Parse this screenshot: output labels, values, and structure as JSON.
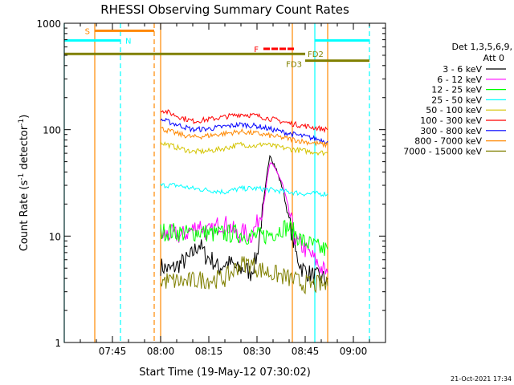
{
  "chart_data": {
    "type": "line",
    "title": "RHESSI Observing Summary Count Rates",
    "xlabel": "Start Time (19-May-12 07:30:02)",
    "ylabel_main": "Count Rate (s",
    "ylabel_sup1": "-1",
    "ylabel_mid": " detector",
    "ylabel_sup2": "-1",
    "ylabel_end": ")",
    "footer": "21-Oct-2021 17:34",
    "x_unit": "minutes after 07:30",
    "xlim": [
      0,
      100
    ],
    "y_scale": "log",
    "ylim": [
      1,
      1000
    ],
    "x_ticks": [
      {
        "label": "07:45",
        "value": 15
      },
      {
        "label": "08:00",
        "value": 30
      },
      {
        "label": "08:15",
        "value": 45
      },
      {
        "label": "08:30",
        "value": 60
      },
      {
        "label": "08:45",
        "value": 75
      },
      {
        "label": "09:00",
        "value": 90
      }
    ],
    "y_ticks": [
      {
        "label": "1",
        "value": 1
      },
      {
        "label": "10",
        "value": 10
      },
      {
        "label": "100",
        "value": 100
      },
      {
        "label": "1000",
        "value": 1000
      }
    ],
    "legend_header": [
      "Det 1,3,5,6,9,",
      "Att 0"
    ],
    "series": [
      {
        "name": "3 - 6 keV",
        "color": "#000000",
        "x": [
          30,
          33,
          36,
          39,
          42,
          44,
          46,
          48,
          50,
          52,
          54,
          56,
          58,
          60,
          62,
          64,
          66,
          68,
          70,
          72,
          74,
          76,
          78,
          80,
          82
        ],
        "y": [
          5.2,
          4.8,
          5.5,
          6.2,
          8.5,
          6.5,
          6.0,
          5.0,
          5.5,
          5.5,
          4.8,
          5.0,
          4.5,
          6.5,
          20,
          60,
          42,
          28,
          14,
          7,
          5,
          4.5,
          4.2,
          4.0,
          4.0
        ]
      },
      {
        "name": "6 - 12 keV",
        "color": "#ff00ff",
        "x": [
          30,
          33,
          36,
          39,
          42,
          44,
          46,
          48,
          50,
          52,
          54,
          56,
          58,
          60,
          62,
          64,
          66,
          68,
          70,
          72,
          74,
          76,
          78,
          80,
          82
        ],
        "y": [
          10,
          10.5,
          10,
          11,
          13,
          11,
          11,
          13,
          13,
          12,
          10,
          11,
          10,
          13,
          20,
          48,
          42,
          30,
          17,
          9,
          8,
          7,
          6,
          5,
          4.5
        ]
      },
      {
        "name": "12 - 25 keV",
        "color": "#00ff00",
        "x": [
          30,
          34,
          38,
          42,
          46,
          50,
          54,
          58,
          62,
          66,
          68,
          70,
          72,
          74,
          76,
          78,
          80,
          82
        ],
        "y": [
          11,
          11,
          10.5,
          11,
          10.5,
          10.5,
          10.5,
          10,
          10,
          11,
          12,
          12,
          10.5,
          9,
          8.5,
          8,
          7.5,
          7.5
        ]
      },
      {
        "name": "25 - 50 keV",
        "color": "#00ffff",
        "x": [
          30,
          35,
          40,
          45,
          50,
          55,
          60,
          65,
          70,
          75,
          80,
          82
        ],
        "y": [
          30,
          30,
          28,
          27,
          26,
          28,
          28,
          27,
          26,
          25,
          25,
          25
        ]
      },
      {
        "name": "50 - 100 keV",
        "color": "#d4c400",
        "x": [
          30,
          35,
          40,
          45,
          50,
          55,
          60,
          62,
          65,
          70,
          75,
          80,
          82
        ],
        "y": [
          76,
          68,
          62,
          63,
          67,
          73,
          70,
          74,
          70,
          66,
          63,
          61,
          60
        ]
      },
      {
        "name": "100 - 300 keV",
        "color": "#ff0000",
        "x": [
          30,
          35,
          40,
          45,
          50,
          55,
          60,
          65,
          70,
          75,
          80,
          82
        ],
        "y": [
          155,
          135,
          120,
          125,
          132,
          140,
          135,
          125,
          115,
          108,
          102,
          100
        ]
      },
      {
        "name": "300 - 800 keV",
        "color": "#0000ff",
        "x": [
          30,
          35,
          40,
          45,
          50,
          55,
          60,
          65,
          70,
          75,
          80,
          82
        ],
        "y": [
          125,
          112,
          100,
          102,
          107,
          112,
          108,
          100,
          92,
          86,
          80,
          78
        ]
      },
      {
        "name": "800 - 7000 keV",
        "color": "#ff8800",
        "x": [
          30,
          35,
          40,
          45,
          50,
          55,
          60,
          65,
          70,
          75,
          80,
          82
        ],
        "y": [
          103,
          92,
          85,
          88,
          92,
          96,
          92,
          87,
          82,
          77,
          73,
          72
        ]
      },
      {
        "name": "7000 - 15000 keV",
        "color": "#808000",
        "x": [
          30,
          34,
          38,
          42,
          46,
          50,
          52,
          54,
          56,
          58,
          60,
          64,
          68,
          72,
          74,
          76,
          78,
          80,
          82
        ],
        "y": [
          3.8,
          3.8,
          3.7,
          3.9,
          3.9,
          4.0,
          4.5,
          5.2,
          5.5,
          5.5,
          5.0,
          4.5,
          4.2,
          3.8,
          3.6,
          3.5,
          3.5,
          3.5,
          3.4
        ]
      }
    ],
    "vlines": [
      {
        "x": 0,
        "color": "#00ffff",
        "style": "solid"
      },
      {
        "x": 9.5,
        "color": "#ff8800",
        "style": "solid"
      },
      {
        "x": 17.5,
        "color": "#00ffff",
        "style": "dashed"
      },
      {
        "x": 28,
        "color": "#ff8800",
        "style": "dashed"
      },
      {
        "x": 30,
        "color": "#ff8800",
        "style": "solid"
      },
      {
        "x": 71,
        "color": "#ff8800",
        "style": "solid"
      },
      {
        "x": 78,
        "color": "#00ffff",
        "style": "solid"
      },
      {
        "x": 82,
        "color": "#ff8800",
        "style": "solid"
      },
      {
        "x": 95,
        "color": "#00ffff",
        "style": "dashed"
      }
    ],
    "flag_bars": [
      {
        "label": "S",
        "color": "#ff8800",
        "x1": 9.5,
        "x2": 28,
        "y": 850,
        "label_side": "left"
      },
      {
        "label": "N",
        "color": "#00ffff",
        "x1": 0,
        "x2": 17.5,
        "y": 690,
        "label_side": "right"
      },
      {
        "label": "",
        "color": "#00ffff",
        "x1": 78,
        "x2": 95,
        "y": 690,
        "label_side": "none"
      },
      {
        "label": "F",
        "color": "#ff0000",
        "x1": 62,
        "x2": 72,
        "y": 575,
        "label_side": "left",
        "dashed": true
      },
      {
        "label": "FD2",
        "color": "#808000",
        "x1": 0,
        "x2": 75,
        "y": 515,
        "label_side": "right_below"
      },
      {
        "label": "FD3",
        "color": "#808000",
        "x1": 75,
        "x2": 95,
        "y": 445,
        "label_side": "left_below"
      }
    ]
  }
}
